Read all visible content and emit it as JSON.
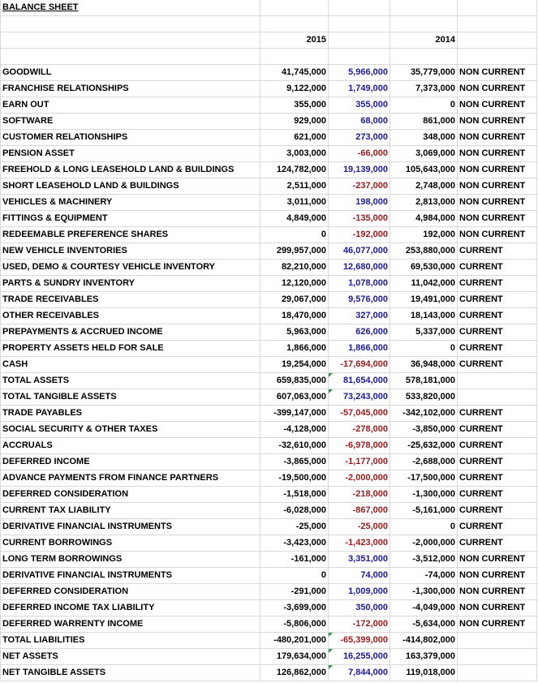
{
  "title": "BALANCE SHEET",
  "header": [
    "2015",
    "2014"
  ],
  "rows": [
    [
      "GOODWILL",
      "41,745,000",
      "5,966,000",
      "35,779,000",
      "NON CURRENT"
    ],
    [
      "FRANCHISE RELATIONSHIPS",
      "9,122,000",
      "1,749,000",
      "7,373,000",
      "NON CURRENT"
    ],
    [
      "EARN OUT",
      "355,000",
      "355,000",
      "0",
      "NON CURRENT"
    ],
    [
      "SOFTWARE",
      "929,000",
      "68,000",
      "861,000",
      "NON CURRENT"
    ],
    [
      "CUSTOMER RELATIONSHIPS",
      "621,000",
      "273,000",
      "348,000",
      "NON CURRENT"
    ],
    [
      "PENSION ASSET",
      "3,003,000",
      "-66,000",
      "3,069,000",
      "NON CURRENT"
    ],
    [
      "FREEHOLD & LONG LEASEHOLD LAND & BUILDINGS",
      "124,782,000",
      "19,139,000",
      "105,643,000",
      "NON CURRENT"
    ],
    [
      "SHORT LEASEHOLD LAND & BUILDINGS",
      "2,511,000",
      "-237,000",
      "2,748,000",
      "NON CURRENT"
    ],
    [
      "VEHICLES & MACHINERY",
      "3,011,000",
      "198,000",
      "2,813,000",
      "NON CURRENT"
    ],
    [
      "FITTINGS & EQUIPMENT",
      "4,849,000",
      "-135,000",
      "4,984,000",
      "NON CURRENT"
    ],
    [
      "REDEEMABLE PREFERENCE SHARES",
      "0",
      "-192,000",
      "192,000",
      "NON CURRENT"
    ],
    [
      "NEW VEHICLE INVENTORIES",
      "299,957,000",
      "46,077,000",
      "253,880,000",
      "CURRENT"
    ],
    [
      "USED, DEMO & COURTESY VEHICLE INVENTORY",
      "82,210,000",
      "12,680,000",
      "69,530,000",
      "CURRENT"
    ],
    [
      "PARTS & SUNDRY INVENTORY",
      "12,120,000",
      "1,078,000",
      "11,042,000",
      "CURRENT"
    ],
    [
      "TRADE RECEIVABLES",
      "29,067,000",
      "9,576,000",
      "19,491,000",
      "CURRENT"
    ],
    [
      "OTHER RECEIVABLES",
      "18,470,000",
      "327,000",
      "18,143,000",
      "CURRENT"
    ],
    [
      "PREPAYMENTS & ACCRUED INCOME",
      "5,963,000",
      "626,000",
      "5,337,000",
      "CURRENT"
    ],
    [
      "PROPERTY ASSETS HELD FOR SALE",
      "1,866,000",
      "1,866,000",
      "0",
      "CURRENT"
    ],
    [
      "CASH",
      "19,254,000",
      "-17,694,000",
      "36,948,000",
      "CURRENT"
    ],
    [
      "TOTAL ASSETS",
      "659,835,000",
      "81,654,000",
      "578,181,000"
    ],
    [
      "TOTAL TANGIBLE ASSETS",
      "607,063,000",
      "73,243,000",
      "533,820,000"
    ],
    [
      "TRADE PAYABLES",
      "-399,147,000",
      "-57,045,000",
      "-342,102,000",
      "CURRENT"
    ],
    [
      "SOCIAL SECURITY & OTHER TAXES",
      "-4,128,000",
      "-278,000",
      "-3,850,000",
      "CURRENT"
    ],
    [
      "ACCRUALS",
      "-32,610,000",
      "-6,978,000",
      "-25,632,000",
      "CURRENT"
    ],
    [
      "DEFERRED INCOME",
      "-3,865,000",
      "-1,177,000",
      "-2,688,000",
      "CURRENT"
    ],
    [
      "ADVANCE PAYMENTS FROM FINANCE PARTNERS",
      "-19,500,000",
      "-2,000,000",
      "-17,500,000",
      "CURRENT"
    ],
    [
      "DEFERRED CONSIDERATION",
      "-1,518,000",
      "-218,000",
      "-1,300,000",
      "CURRENT"
    ],
    [
      "CURRENT TAX LIABILITY",
      "-6,028,000",
      "-867,000",
      "-5,161,000",
      "CURRENT"
    ],
    [
      "DERIVATIVE FINANCIAL INSTRUMENTS",
      "-25,000",
      "-25,000",
      "0",
      "CURRENT"
    ],
    [
      "CURRENT BORROWINGS",
      "-3,423,000",
      "-1,423,000",
      "-2,000,000",
      "CURRENT"
    ],
    [
      "LONG TERM BORROWINGS",
      "-161,000",
      "3,351,000",
      "-3,512,000",
      "NON CURRENT"
    ],
    [
      "DERIVATIVE FINANCIAL INSTRUMENTS",
      "0",
      "74,000",
      "-74,000",
      "NON CURRENT"
    ],
    [
      "DEFERRED CONSIDERATION",
      "-291,000",
      "1,009,000",
      "-1,300,000",
      "NON CURRENT"
    ],
    [
      "DEFERRED INCOME TAX LIABILITY",
      "-3,699,000",
      "350,000",
      "-4,049,000",
      "NON CURRENT"
    ],
    [
      "DEFERRED WARRENTY INCOME",
      "-5,806,000",
      "-172,000",
      "-5,634,000",
      "NON CURRENT"
    ],
    [
      "TOTAL LIABILITIES",
      "-480,201,000",
      "-65,399,000",
      "-414,802,000"
    ],
    [
      "NET ASSETS",
      "179,634,000",
      "16,255,000",
      "163,379,000"
    ],
    [
      "NET TANGIBLE ASSETS",
      "126,862,000",
      "7,844,000",
      "119,018,000"
    ]
  ]
}
